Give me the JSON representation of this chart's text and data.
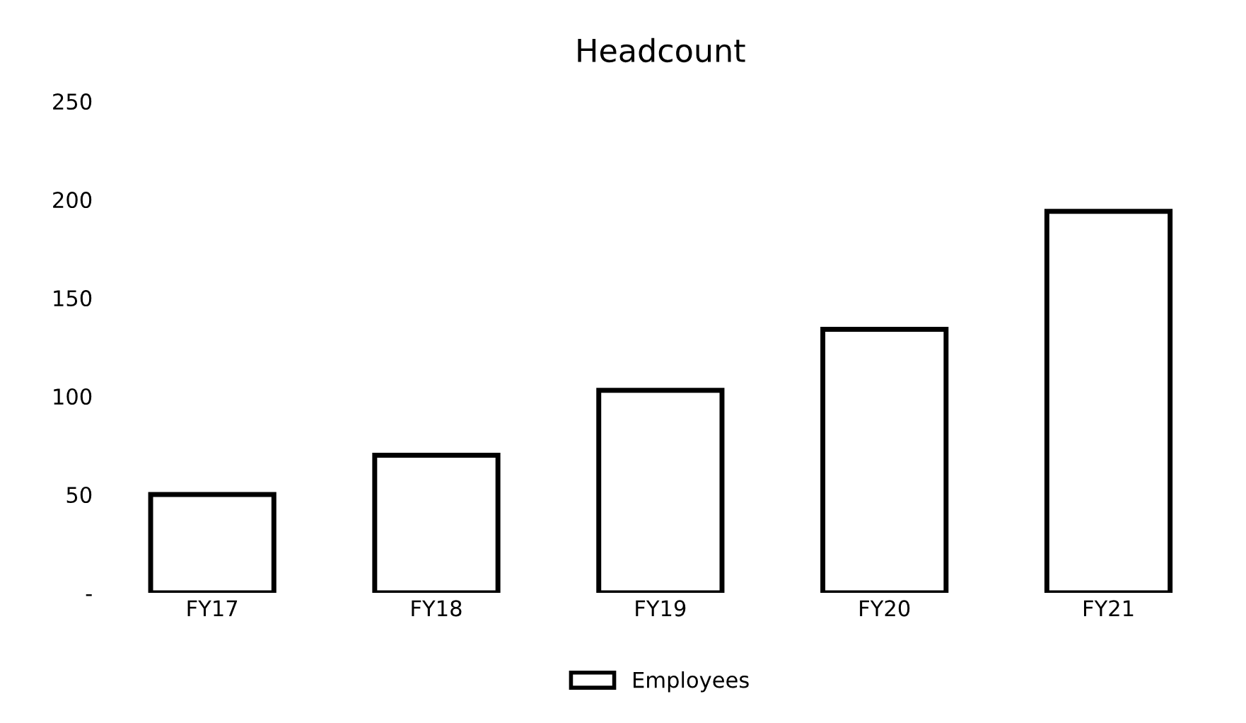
{
  "chart_data": {
    "type": "bar",
    "title": "Headcount",
    "categories": [
      "FY17",
      "FY18",
      "FY19",
      "FY20",
      "FY21"
    ],
    "series": [
      {
        "name": "Employees",
        "color": "#ffffff",
        "values": [
          50,
          70,
          103,
          134,
          194
        ]
      }
    ],
    "ylim": [
      0,
      250
    ],
    "yticks": [
      {
        "value": 0,
        "label": "-"
      },
      50,
      100,
      150,
      200,
      250
    ],
    "grid": false,
    "legend": "bottom"
  }
}
